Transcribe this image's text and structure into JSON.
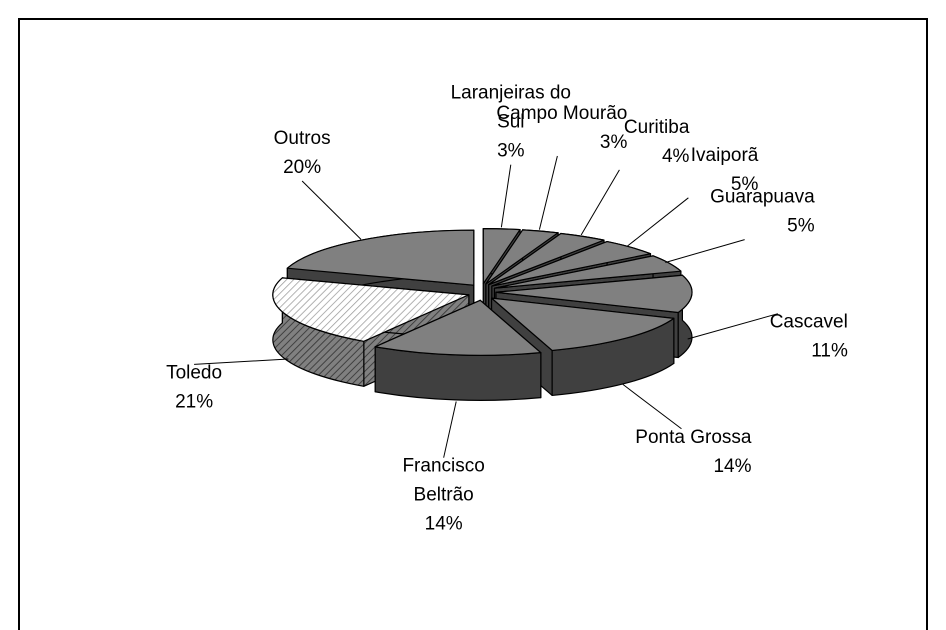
{
  "chart_data": {
    "type": "pie3d",
    "categories": [
      "Laranjeiras do Sul",
      "Campo Mourão",
      "Curitiba",
      "Ivaiporã",
      "Guarapuava",
      "Cascavel",
      "Ponta Grossa",
      "Francisco Beltrão",
      "Toledo",
      "Outros"
    ],
    "values": [
      3,
      3,
      4,
      5,
      5,
      11,
      14,
      14,
      21,
      20
    ],
    "value_labels": [
      "3%",
      "3%",
      "4%",
      "5%",
      "5%",
      "11%",
      "14%",
      "14%",
      "21%",
      "20%"
    ],
    "colors": [
      "#808080",
      "#808080",
      "#808080",
      "#808080",
      "#808080",
      "#808080",
      "#808080",
      "#808080",
      "#e6e6e6",
      "#808080"
    ]
  }
}
